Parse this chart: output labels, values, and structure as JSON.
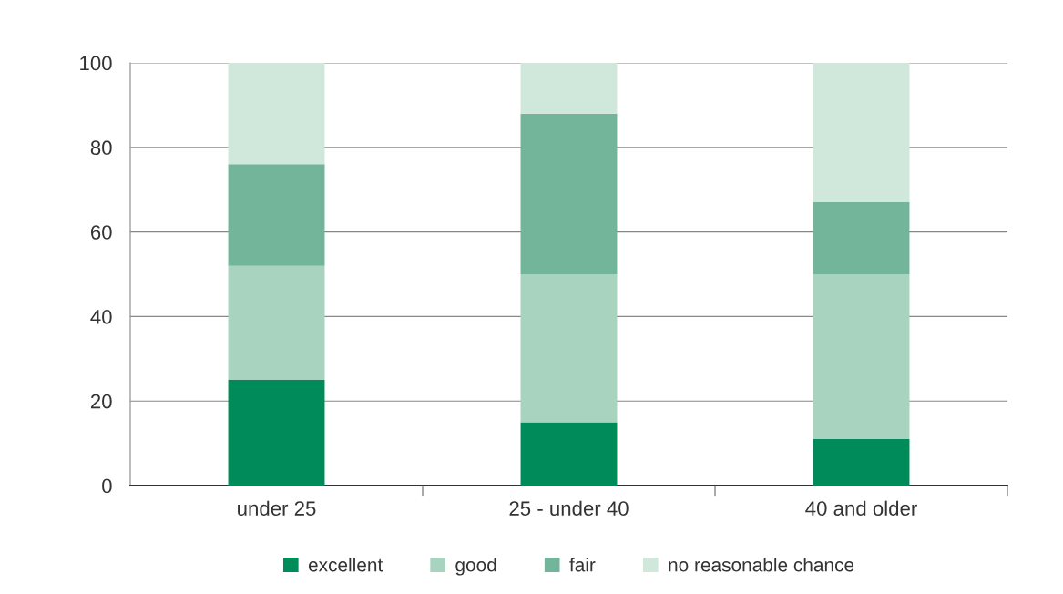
{
  "chart_data": {
    "type": "bar",
    "stacked": true,
    "categories": [
      "under 25",
      "25 - under 40",
      "40 and older"
    ],
    "series": [
      {
        "name": "excellent",
        "color": "#008c5a",
        "values": [
          25,
          15,
          11
        ]
      },
      {
        "name": "good",
        "color": "#a8d3bf",
        "values": [
          27,
          35,
          39
        ]
      },
      {
        "name": "fair",
        "color": "#72b59a",
        "values": [
          24,
          38,
          17
        ]
      },
      {
        "name": "no reasonable chance",
        "color": "#d0e7db",
        "values": [
          24,
          12,
          33
        ]
      }
    ],
    "ylim": [
      0,
      100
    ],
    "yticks": [
      0,
      20,
      40,
      60,
      80,
      100
    ],
    "grid": "y",
    "legend": "bottom"
  }
}
